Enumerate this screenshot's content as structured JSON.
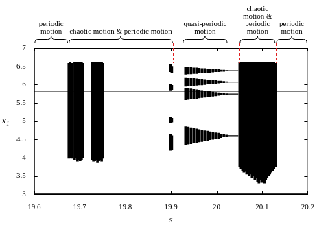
{
  "chart_data": {
    "type": "bar",
    "x_label": "s",
    "y_label": "x₁",
    "xlim": [
      19.6,
      20.2
    ],
    "xticks": [
      19.6,
      19.7,
      19.8,
      19.9,
      20,
      20.1,
      20.2
    ],
    "ylim": [
      3,
      7
    ],
    "yticks": [
      3,
      3.5,
      4,
      4.5,
      5,
      5.5,
      6,
      6.5,
      7
    ],
    "grid": false,
    "annotations": [
      {
        "text": "periodic motion",
        "from": 19.6,
        "to": 19.675
      },
      {
        "text": "chaotic motion & periodic motion",
        "from": 19.675,
        "to": 19.905
      },
      {
        "text": "quasi-periodic motion",
        "from": 19.925,
        "to": 20.025
      },
      {
        "text": "chaotic motion & periodic motion",
        "from": 20.05,
        "to": 20.13
      },
      {
        "text": "periodic motion",
        "from": 20.13,
        "to": 20.2
      }
    ],
    "series": [
      {
        "type": "bar",
        "color": "#000000",
        "x": [
          19.676,
          19.679,
          19.682,
          19.689,
          19.692,
          19.695,
          19.698,
          19.701,
          19.704,
          19.707,
          19.727,
          19.73,
          19.733,
          19.736,
          19.739,
          19.742,
          19.745,
          19.748,
          19.751,
          19.899,
          19.899,
          19.899,
          19.899,
          19.902,
          19.902,
          19.902,
          19.902,
          19.932,
          19.938,
          19.944,
          19.95,
          19.956,
          19.962,
          19.968,
          19.974,
          19.98,
          19.986,
          19.992,
          19.998,
          20.004,
          20.01,
          20.016,
          20.022,
          19.932,
          19.938,
          19.944,
          19.95,
          19.956,
          19.962,
          19.968,
          19.974,
          19.98,
          19.986,
          19.992,
          19.998,
          20.004,
          20.01,
          20.016,
          20.022,
          19.932,
          19.938,
          19.944,
          19.95,
          19.956,
          19.962,
          19.968,
          19.974,
          19.98,
          19.986,
          19.992,
          19.998,
          20.004,
          20.01,
          20.016,
          20.022,
          19.932,
          19.938,
          19.944,
          19.95,
          19.956,
          19.962,
          19.968,
          19.974,
          19.98,
          19.986,
          19.992,
          19.998,
          20.004,
          20.01,
          20.016,
          20.022,
          20.051,
          20.054,
          20.057,
          20.06,
          20.063,
          20.066,
          20.069,
          20.072,
          20.075,
          20.078,
          20.081,
          20.084,
          20.087,
          20.09,
          20.093,
          20.096,
          20.099,
          20.102,
          20.105,
          20.108,
          20.111,
          20.114,
          20.117,
          20.12,
          20.123,
          20.126,
          20.129
        ],
        "values": [
          [
            3.98,
            6.58
          ],
          [
            4.0,
            6.6
          ],
          [
            3.98,
            6.58
          ],
          [
            3.95,
            6.6
          ],
          [
            4.0,
            6.62
          ],
          [
            3.9,
            6.6
          ],
          [
            3.95,
            6.6
          ],
          [
            3.92,
            6.62
          ],
          [
            3.95,
            6.6
          ],
          [
            4.0,
            6.58
          ],
          [
            3.95,
            6.6
          ],
          [
            3.9,
            6.62
          ],
          [
            3.93,
            6.6
          ],
          [
            3.95,
            6.62
          ],
          [
            3.88,
            6.6
          ],
          [
            3.92,
            6.62
          ],
          [
            3.95,
            6.6
          ],
          [
            3.9,
            6.6
          ],
          [
            3.98,
            6.58
          ],
          [
            6.35,
            6.55
          ],
          [
            5.85,
            6.0
          ],
          [
            4.95,
            5.1
          ],
          [
            4.2,
            4.65
          ],
          [
            6.33,
            6.5
          ],
          [
            5.86,
            5.98
          ],
          [
            4.97,
            5.08
          ],
          [
            4.22,
            4.6
          ],
          [
            6.28,
            6.48
          ],
          [
            6.29,
            6.47
          ],
          [
            6.29,
            6.47
          ],
          [
            6.3,
            6.46
          ],
          [
            6.3,
            6.46
          ],
          [
            6.31,
            6.45
          ],
          [
            6.32,
            6.44
          ],
          [
            6.32,
            6.44
          ],
          [
            6.33,
            6.43
          ],
          [
            6.33,
            6.43
          ],
          [
            6.34,
            6.42
          ],
          [
            6.35,
            6.41
          ],
          [
            6.35,
            6.41
          ],
          [
            6.36,
            6.4
          ],
          [
            6.36,
            6.4
          ],
          [
            6.37,
            6.39
          ],
          [
            5.95,
            6.19
          ],
          [
            5.96,
            6.18
          ],
          [
            5.97,
            6.18
          ],
          [
            5.97,
            6.17
          ],
          [
            5.98,
            6.16
          ],
          [
            5.99,
            6.15
          ],
          [
            5.99,
            6.15
          ],
          [
            6.0,
            6.14
          ],
          [
            6.01,
            6.13
          ],
          [
            6.02,
            6.12
          ],
          [
            6.02,
            6.12
          ],
          [
            6.03,
            6.11
          ],
          [
            6.04,
            6.1
          ],
          [
            6.05,
            6.1
          ],
          [
            6.05,
            6.09
          ],
          [
            6.06,
            6.08
          ],
          [
            5.58,
            5.9
          ],
          [
            5.59,
            5.89
          ],
          [
            5.6,
            5.88
          ],
          [
            5.61,
            5.87
          ],
          [
            5.62,
            5.86
          ],
          [
            5.63,
            5.85
          ],
          [
            5.64,
            5.84
          ],
          [
            5.65,
            5.83
          ],
          [
            5.66,
            5.82
          ],
          [
            5.67,
            5.81
          ],
          [
            5.68,
            5.8
          ],
          [
            5.69,
            5.79
          ],
          [
            5.7,
            5.78
          ],
          [
            5.71,
            5.77
          ],
          [
            5.72,
            5.76
          ],
          [
            5.73,
            5.75
          ],
          [
            4.35,
            4.85
          ],
          [
            4.37,
            4.84
          ],
          [
            4.38,
            4.82
          ],
          [
            4.4,
            4.8
          ],
          [
            4.41,
            4.79
          ],
          [
            4.43,
            4.77
          ],
          [
            4.44,
            4.76
          ],
          [
            4.46,
            4.74
          ],
          [
            4.47,
            4.73
          ],
          [
            4.49,
            4.71
          ],
          [
            4.5,
            4.7
          ],
          [
            4.52,
            4.68
          ],
          [
            4.53,
            4.67
          ],
          [
            4.55,
            4.65
          ],
          [
            4.57,
            4.64
          ],
          [
            4.58,
            4.62
          ],
          [
            3.75,
            6.6
          ],
          [
            3.7,
            6.62
          ],
          [
            3.65,
            6.6
          ],
          [
            3.6,
            6.62
          ],
          [
            3.62,
            6.6
          ],
          [
            3.55,
            6.62
          ],
          [
            3.6,
            6.6
          ],
          [
            3.5,
            6.62
          ],
          [
            3.55,
            6.6
          ],
          [
            3.45,
            6.62
          ],
          [
            3.5,
            6.6
          ],
          [
            3.4,
            6.62
          ],
          [
            3.45,
            6.6
          ],
          [
            3.35,
            6.62
          ],
          [
            3.3,
            6.6
          ],
          [
            3.4,
            6.62
          ],
          [
            3.32,
            6.6
          ],
          [
            3.35,
            6.62
          ],
          [
            3.3,
            6.6
          ],
          [
            3.4,
            6.62
          ],
          [
            3.45,
            6.6
          ],
          [
            3.5,
            6.62
          ],
          [
            3.55,
            6.6
          ],
          [
            3.6,
            6.62
          ],
          [
            3.65,
            6.6
          ],
          [
            3.7,
            6.6
          ],
          [
            3.75,
            6.58
          ]
        ]
      },
      {
        "type": "line",
        "color": "#000000",
        "x": [
          19.6,
          20.2
        ],
        "values": [
          5.82,
          5.82
        ]
      },
      {
        "type": "line",
        "color": "#000000",
        "x": [
          20.024,
          20.048,
          20.048,
          20.024,
          20.048,
          20.048,
          20.024,
          20.048,
          20.048,
          20.024,
          20.048
        ],
        "values": [
          6.38,
          6.38,
          null,
          6.07,
          6.07,
          null,
          5.74,
          5.74,
          null,
          4.6,
          4.6
        ]
      }
    ]
  }
}
